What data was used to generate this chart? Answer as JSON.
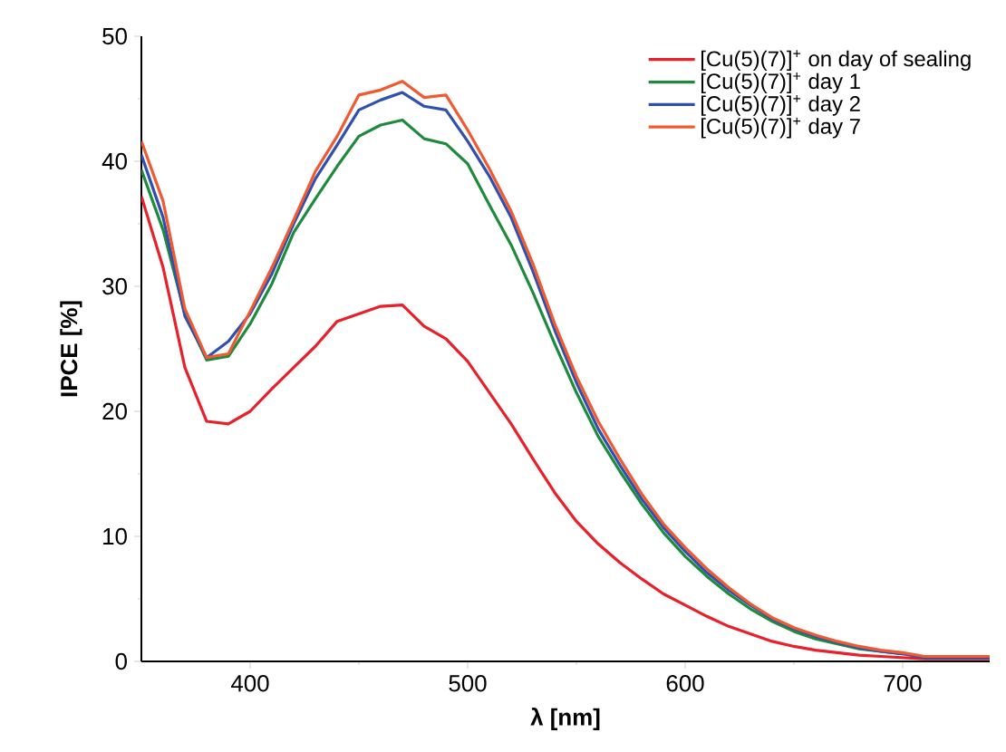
{
  "chart_data": {
    "type": "line",
    "xlabel": "λ [nm]",
    "ylabel": "IPCE [%]",
    "x": [
      350,
      360,
      370,
      380,
      390,
      400,
      410,
      420,
      430,
      440,
      450,
      460,
      470,
      480,
      490,
      500,
      510,
      520,
      530,
      540,
      550,
      560,
      570,
      580,
      590,
      600,
      610,
      620,
      630,
      640,
      650,
      660,
      670,
      680,
      690,
      700,
      710,
      720,
      730,
      740
    ],
    "xlim": [
      350,
      740
    ],
    "xticks": [
      400,
      500,
      600,
      700
    ],
    "ylim": [
      0,
      50
    ],
    "yticks": [
      0,
      10,
      20,
      30,
      40,
      50
    ],
    "legend": "top right",
    "line_style": "solid",
    "marker": "none",
    "series": [
      {
        "name": "[Cu(5)(7)]$^{+}$ on day of sealing",
        "color": "#e8202a",
        "values": [
          37.2,
          31.5,
          23.5,
          19.2,
          19.0,
          20.0,
          21.8,
          23.5,
          25.2,
          27.2,
          27.8,
          28.4,
          28.5,
          26.8,
          25.8,
          24.0,
          21.5,
          19.0,
          16.2,
          13.5,
          11.2,
          9.4,
          7.9,
          6.6,
          5.4,
          4.5,
          3.6,
          2.8,
          2.2,
          1.6,
          1.2,
          0.9,
          0.7,
          0.5,
          0.4,
          0.3,
          0.2,
          0.2,
          0.2,
          0.2
        ]
      },
      {
        "name": "[Cu(5)(7)]$^{+}$ day 1",
        "color": "#1e8a3c",
        "values": [
          39.3,
          34.5,
          27.8,
          24.1,
          24.4,
          27.0,
          30.2,
          34.3,
          37.0,
          39.6,
          42.0,
          42.9,
          43.3,
          41.8,
          41.4,
          39.8,
          36.5,
          33.3,
          29.5,
          25.4,
          21.5,
          18.0,
          15.2,
          12.6,
          10.3,
          8.4,
          6.8,
          5.4,
          4.2,
          3.2,
          2.4,
          1.8,
          1.4,
          1.0,
          0.8,
          0.6,
          null,
          null,
          null,
          null
        ]
      },
      {
        "name": "[Cu(5)(7)]$^{+}$ day 2",
        "color": "#3050b0",
        "values": [
          40.5,
          35.5,
          27.6,
          24.3,
          25.6,
          27.8,
          31.0,
          35.0,
          38.6,
          41.3,
          44.1,
          44.9,
          45.5,
          44.4,
          44.1,
          41.6,
          38.8,
          35.5,
          31.2,
          26.5,
          22.3,
          18.6,
          15.7,
          13.0,
          10.7,
          8.8,
          7.1,
          5.7,
          4.5,
          3.4,
          2.6,
          2.0,
          1.5,
          1.1,
          0.8,
          0.6,
          0.3,
          0.3,
          0.3,
          0.3
        ]
      },
      {
        "name": "[Cu(5)(7)]$^{+}$ day 7",
        "color": "#f05a30",
        "values": [
          41.6,
          36.8,
          28.2,
          24.3,
          24.6,
          28.0,
          31.5,
          35.3,
          39.2,
          42.0,
          45.3,
          45.7,
          46.4,
          45.1,
          45.3,
          42.5,
          39.4,
          36.0,
          31.8,
          27.0,
          22.8,
          19.2,
          16.2,
          13.4,
          11.0,
          9.1,
          7.4,
          5.9,
          4.6,
          3.5,
          2.7,
          2.1,
          1.6,
          1.2,
          0.9,
          0.7,
          0.4,
          0.4,
          0.4,
          0.4
        ]
      }
    ]
  }
}
